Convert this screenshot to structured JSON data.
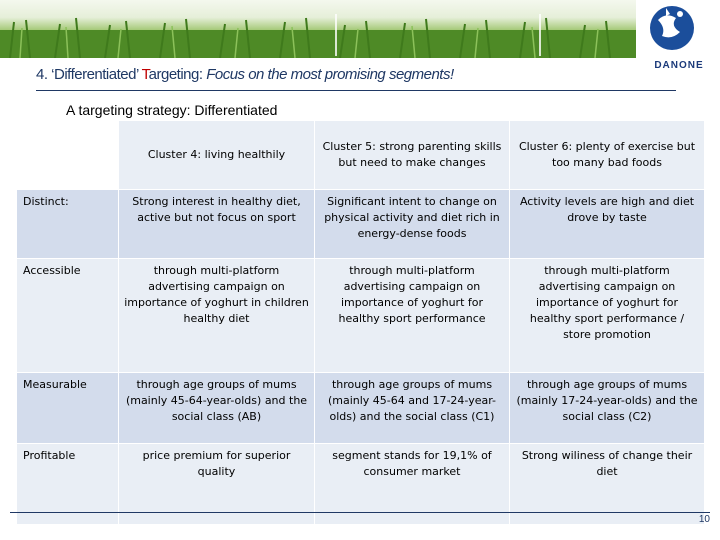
{
  "header": {
    "title_prefix": "4. ‘Differentiated’ ",
    "title_red": "T",
    "title_mid": "argeting: ",
    "title_italic": "Focus on the most promising segments!",
    "logo_text": "DANONE"
  },
  "subtitle": "A targeting strategy: Differentiated",
  "table": {
    "columns": [
      "Cluster 4: living healthily",
      "Cluster 5: strong parenting skills but need to make changes",
      "Cluster 6: plenty of exercise but too many bad foods"
    ],
    "rows": [
      {
        "label": "Distinct:",
        "cells": [
          "Strong interest in healthy diet, active but not focus on sport",
          "Significant intent to change on physical activity and diet rich in energy-dense foods",
          "Activity levels are high and diet drove by taste"
        ]
      },
      {
        "label": "Accessible",
        "cells": [
          "through multi-platform advertising campaign on importance of yoghurt in children healthy diet",
          "through multi-platform advertising campaign on importance of yoghurt for healthy sport performance",
          "through multi-platform advertising campaign on importance of yoghurt for healthy sport performance / store promotion"
        ]
      },
      {
        "label": "Measurable",
        "cells": [
          "through age groups of mums (mainly 45-64-year-olds) and the social class (AB)",
          "through age groups of mums (mainly 45-64 and 17-24-year-olds) and the social class (C1)",
          "through age groups of mums (mainly 17-24-year-olds) and the social class (C2)"
        ]
      },
      {
        "label": "Profitable",
        "cells": [
          "price premium for superior quality",
          "segment stands for 19,1% of consumer market",
          "Strong wiliness of change their diet"
        ]
      }
    ]
  },
  "page_number": "10"
}
